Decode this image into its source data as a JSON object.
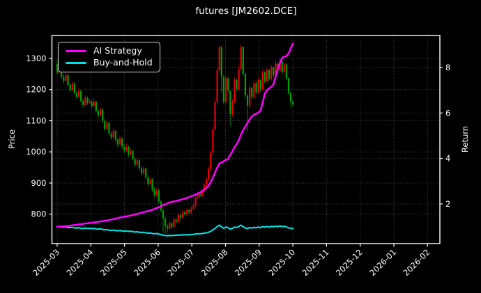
{
  "window": {
    "title": "futures [JM2602.DCE]"
  },
  "colors": {
    "background": "#000000",
    "text": "#ffffff",
    "grid": "#4c4c4c",
    "spine": "#ffffff",
    "candle_up": "#e80000",
    "candle_down": "#00a000",
    "ai_strategy": "#ff00ff",
    "buy_and_hold": "#00e0e0"
  },
  "chart_data": {
    "type": "candlestick+line",
    "title": "futures [JM2602.DCE]",
    "grid": "dotted, both price and return axes",
    "legend_position": "upper left",
    "x_axis": {
      "tick_labels": [
        "2025-03",
        "2025-04",
        "2025-05",
        "2025-06",
        "2025-07",
        "2025-08",
        "2025-09",
        "2025-10",
        "2025-11",
        "2025-12",
        "2026-01",
        "2026-02"
      ],
      "label_rotation_deg": 45,
      "data_range": "2025-03 to early 2025-10; axis extends empty to 2026-02"
    },
    "left_axis": {
      "label": "Price",
      "ticks": [
        800,
        900,
        1000,
        1100,
        1200,
        1300
      ],
      "approx_limits": [
        705,
        1375
      ]
    },
    "right_axis": {
      "label": "Return",
      "ticks": [
        2,
        4,
        6,
        8
      ],
      "approx_limits": [
        0.25,
        9.5
      ]
    },
    "legend": [
      {
        "label": "AI Strategy",
        "color": "#ff00ff"
      },
      {
        "label": "Buy-and-Hold",
        "color": "#00e0e0"
      }
    ],
    "candles": {
      "note": "~110 sessions Mar 2025 - early Oct 2025, open = previous close",
      "up_color_meaning": "close >= open (red, CN convention)",
      "first_open": 1282,
      "close": [
        1255,
        1268,
        1241,
        1228,
        1246,
        1215,
        1199,
        1219,
        1189,
        1177,
        1196,
        1164,
        1150,
        1173,
        1157,
        1162,
        1147,
        1161,
        1131,
        1117,
        1136,
        1099,
        1074,
        1093,
        1059,
        1047,
        1067,
        1039,
        1024,
        1043,
        1017,
        1004,
        1016,
        991,
        1003,
        977,
        959,
        973,
        947,
        931,
        946,
        919,
        897,
        911,
        879,
        861,
        876,
        841,
        812,
        786,
        761,
        754,
        771,
        759,
        783,
        775,
        797,
        789,
        806,
        799,
        813,
        805,
        818,
        827,
        852,
        866,
        858,
        878,
        894,
        912,
        945,
        998,
        1072,
        1160,
        1262,
        1336,
        1241,
        1161,
        1236,
        1196,
        1121,
        1161,
        1231,
        1201,
        1266,
        1336,
        1251,
        1181,
        1149,
        1206,
        1176,
        1221,
        1191,
        1231,
        1201,
        1256,
        1226,
        1263,
        1234,
        1271,
        1246,
        1283,
        1259,
        1291,
        1256,
        1281,
        1236,
        1189,
        1161,
        1152
      ],
      "high": [
        1295,
        1277,
        1273,
        1249,
        1255,
        1250,
        1222,
        1227,
        1224,
        1196,
        1205,
        1199,
        1170,
        1181,
        1178,
        1171,
        1166,
        1170,
        1164,
        1137,
        1144,
        1140,
        1105,
        1101,
        1097,
        1066,
        1075,
        1071,
        1046,
        1052,
        1047,
        1024,
        1026,
        1020,
        1011,
        1007,
        983,
        981,
        977,
        953,
        954,
        950,
        924,
        919,
        915,
        886,
        884,
        880,
        845,
        818,
        791,
        768,
        779,
        776,
        790,
        788,
        804,
        802,
        813,
        811,
        820,
        817,
        825,
        834,
        858,
        872,
        870,
        884,
        901,
        919,
        952,
        1006,
        1082,
        1172,
        1274,
        1343,
        1340,
        1246,
        1243,
        1241,
        1199,
        1170,
        1239,
        1236,
        1276,
        1344,
        1338,
        1254,
        1186,
        1214,
        1209,
        1228,
        1226,
        1238,
        1234,
        1263,
        1259,
        1270,
        1266,
        1278,
        1274,
        1290,
        1287,
        1299,
        1294,
        1287,
        1284,
        1240,
        1193,
        1166
      ],
      "low": [
        1248,
        1250,
        1235,
        1220,
        1224,
        1209,
        1192,
        1196,
        1184,
        1169,
        1174,
        1158,
        1142,
        1147,
        1151,
        1154,
        1140,
        1144,
        1126,
        1109,
        1114,
        1092,
        1066,
        1071,
        1052,
        1039,
        1044,
        1032,
        1016,
        1021,
        1010,
        996,
        1000,
        984,
        988,
        971,
        951,
        955,
        940,
        923,
        928,
        912,
        889,
        893,
        871,
        853,
        857,
        835,
        806,
        744,
        738,
        741,
        748,
        752,
        755,
        768,
        771,
        782,
        785,
        792,
        795,
        799,
        801,
        813,
        822,
        847,
        851,
        853,
        872,
        888,
        906,
        938,
        991,
        1065,
        1153,
        1255,
        1190,
        1152,
        1155,
        1188,
        1085,
        1112,
        1156,
        1194,
        1196,
        1260,
        1243,
        1170,
        1065,
        1141,
        1168,
        1171,
        1184,
        1186,
        1193,
        1196,
        1219,
        1221,
        1227,
        1229,
        1239,
        1241,
        1252,
        1254,
        1249,
        1251,
        1229,
        1182,
        1142,
        1144
      ]
    },
    "series": [
      {
        "name": "AI Strategy",
        "axis": "return",
        "values": [
          1.0,
          1.0,
          1.01,
          1.01,
          1.02,
          1.03,
          1.04,
          1.06,
          1.07,
          1.08,
          1.1,
          1.11,
          1.12,
          1.14,
          1.15,
          1.16,
          1.17,
          1.18,
          1.2,
          1.21,
          1.23,
          1.24,
          1.26,
          1.27,
          1.29,
          1.31,
          1.33,
          1.35,
          1.37,
          1.4,
          1.42,
          1.44,
          1.45,
          1.47,
          1.49,
          1.52,
          1.54,
          1.56,
          1.58,
          1.61,
          1.64,
          1.66,
          1.69,
          1.71,
          1.74,
          1.78,
          1.82,
          1.85,
          1.9,
          1.95,
          1.98,
          2.02,
          2.06,
          2.09,
          2.11,
          2.12,
          2.15,
          2.18,
          2.21,
          2.23,
          2.26,
          2.3,
          2.34,
          2.37,
          2.42,
          2.46,
          2.5,
          2.55,
          2.62,
          2.7,
          2.8,
          2.95,
          3.15,
          3.38,
          3.6,
          3.78,
          3.82,
          3.88,
          3.93,
          3.97,
          4.15,
          4.3,
          4.5,
          4.62,
          4.8,
          5.05,
          5.25,
          5.4,
          5.55,
          5.72,
          5.85,
          5.92,
          5.96,
          6.02,
          6.1,
          6.45,
          6.85,
          7.0,
          7.08,
          7.15,
          7.25,
          7.6,
          7.95,
          8.2,
          8.42,
          8.48,
          8.5,
          8.62,
          8.85,
          9.05
        ]
      },
      {
        "name": "Buy-and-Hold",
        "axis": "return",
        "values": [
          1.0,
          1.01,
          0.989,
          0.978,
          0.993,
          0.968,
          0.955,
          0.971,
          0.947,
          0.938,
          0.953,
          0.927,
          0.916,
          0.935,
          0.922,
          0.926,
          0.914,
          0.925,
          0.901,
          0.89,
          0.905,
          0.876,
          0.856,
          0.871,
          0.844,
          0.834,
          0.85,
          0.828,
          0.816,
          0.831,
          0.81,
          0.8,
          0.81,
          0.79,
          0.799,
          0.778,
          0.764,
          0.775,
          0.755,
          0.742,
          0.754,
          0.732,
          0.715,
          0.726,
          0.7,
          0.686,
          0.698,
          0.67,
          0.647,
          0.626,
          0.606,
          0.601,
          0.614,
          0.605,
          0.624,
          0.618,
          0.635,
          0.629,
          0.642,
          0.637,
          0.648,
          0.641,
          0.652,
          0.659,
          0.679,
          0.69,
          0.684,
          0.7,
          0.712,
          0.727,
          0.753,
          0.795,
          0.854,
          0.924,
          1.006,
          1.065,
          0.989,
          0.925,
          0.985,
          0.953,
          0.893,
          0.925,
          0.981,
          0.957,
          1.009,
          1.065,
          0.997,
          0.941,
          0.916,
          0.961,
          0.937,
          0.973,
          0.949,
          0.981,
          0.957,
          1.001,
          0.977,
          1.006,
          0.983,
          1.013,
          0.993,
          1.022,
          1.003,
          1.029,
          1.001,
          1.021,
          0.985,
          0.947,
          0.925,
          0.918
        ]
      }
    ]
  }
}
